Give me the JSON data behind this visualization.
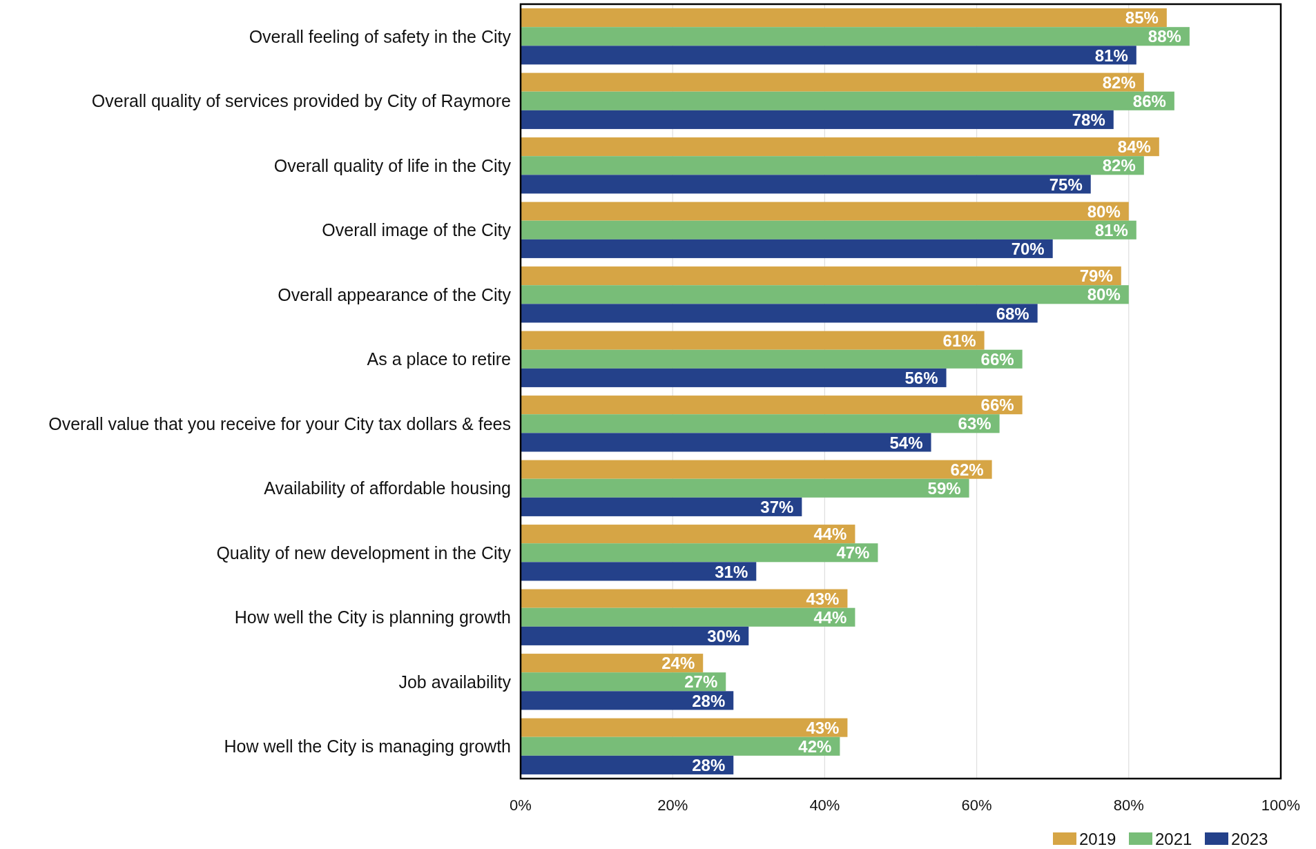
{
  "chart_data": {
    "type": "bar",
    "orientation": "horizontal",
    "categories": [
      "Overall feeling of safety in the City",
      "Overall quality of services provided by City of Raymore",
      "Overall quality of life in the City",
      "Overall image of the City",
      "Overall appearance of the City",
      "As a place to retire",
      "Overall value that you receive for your City tax dollars & fees",
      "Availability of affordable housing",
      "Quality of new development in the City",
      "How well the City is planning growth",
      "Job availability",
      "How well the City is managing growth"
    ],
    "series": [
      {
        "name": "2019",
        "color": "#d6a545",
        "values": [
          85,
          82,
          84,
          80,
          79,
          61,
          66,
          62,
          44,
          43,
          24,
          43
        ],
        "value_labels": [
          "85%",
          "82%",
          "84%",
          "80%",
          "79%",
          "61%",
          "66%",
          "62%",
          "44%",
          "43%",
          "24%",
          "43%"
        ]
      },
      {
        "name": "2021",
        "color": "#78bd78",
        "values": [
          88,
          86,
          82,
          81,
          80,
          66,
          63,
          59,
          47,
          44,
          27,
          42
        ],
        "value_labels": [
          "88%",
          "86%",
          "82%",
          "81%",
          "80%",
          "66%",
          "63%",
          "59%",
          "47%",
          "44%",
          "27%",
          "42%"
        ]
      },
      {
        "name": "2023",
        "color": "#24418a",
        "values": [
          81,
          78,
          75,
          70,
          68,
          56,
          54,
          37,
          31,
          30,
          28,
          28
        ],
        "value_labels": [
          "81%",
          "78%",
          "75%",
          "70%",
          "68%",
          "56%",
          "54%",
          "37%",
          "31%",
          "30%",
          "28%",
          "28%"
        ]
      }
    ],
    "xlim": [
      0,
      100
    ],
    "xticks": [
      {
        "value": 0,
        "label": "0%"
      },
      {
        "value": 20,
        "label": "20%"
      },
      {
        "value": 40,
        "label": "40%"
      },
      {
        "value": 60,
        "label": "60%"
      },
      {
        "value": 80,
        "label": "80%"
      },
      {
        "value": 100,
        "label": "100%"
      }
    ],
    "grid": "x",
    "legend": "bottom right"
  }
}
